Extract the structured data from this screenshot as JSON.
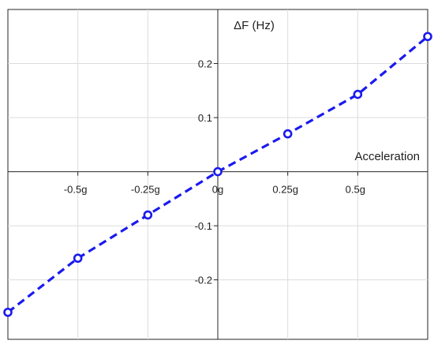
{
  "chart_data": {
    "type": "line",
    "title": "",
    "ylabel": "ΔF (Hz)",
    "xlabel": "Acceleration",
    "xlim": [
      -0.75,
      0.75
    ],
    "ylim": [
      -0.31,
      0.3
    ],
    "x_ticks": [
      {
        "value": -0.5,
        "label": "-0.5g"
      },
      {
        "value": -0.25,
        "label": "-0.25g"
      },
      {
        "value": 0,
        "label": "0g"
      },
      {
        "value": 0.25,
        "label": "0.25g"
      },
      {
        "value": 0.5,
        "label": "0.5g"
      }
    ],
    "y_ticks": [
      {
        "value": 0.2,
        "label": "0.2"
      },
      {
        "value": 0.1,
        "label": "0.1"
      },
      {
        "value": -0.1,
        "label": "-0.1"
      },
      {
        "value": -0.2,
        "label": "-0.2"
      }
    ],
    "grid": true,
    "series": [
      {
        "color": "#1a1aee",
        "line_style": "dashed",
        "marker": "circle",
        "x": [
          -0.75,
          -0.5,
          -0.25,
          0,
          0.25,
          0.5,
          0.75
        ],
        "y": [
          -0.26,
          -0.16,
          -0.08,
          0.0,
          0.07,
          0.143,
          0.25
        ]
      }
    ]
  }
}
